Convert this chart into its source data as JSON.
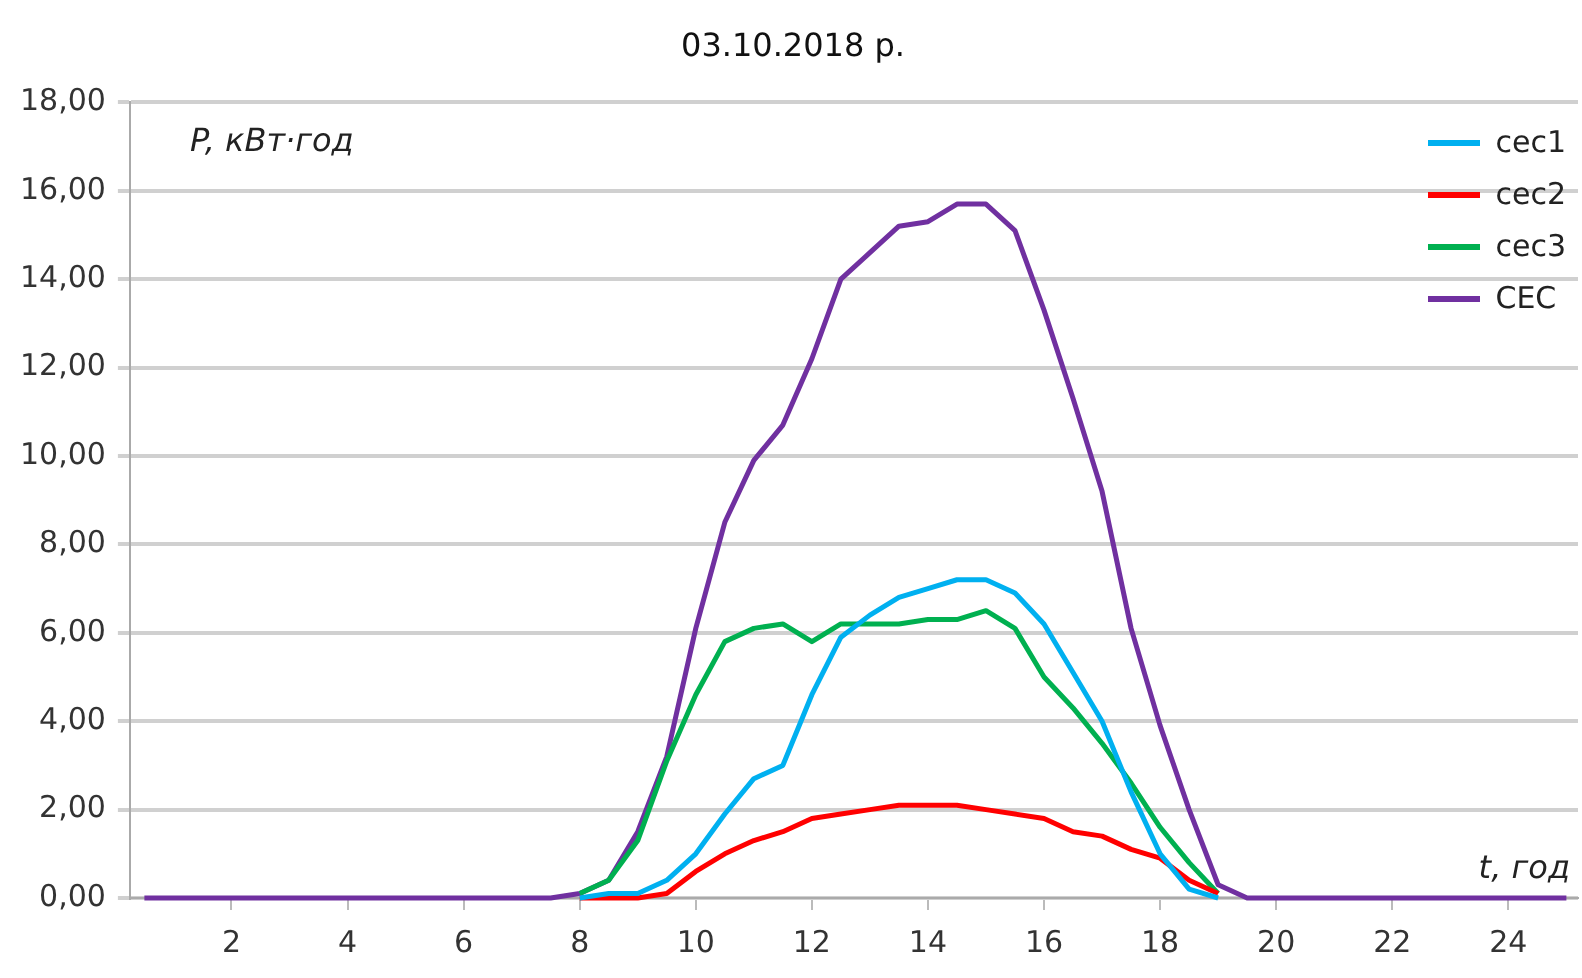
{
  "chart_data": {
    "type": "line",
    "title": "03.10.2018 р.",
    "ylabel": "P, кВт·год",
    "xlabel": "t, год",
    "x": [
      0.5,
      1,
      1.5,
      2,
      2.5,
      3,
      3.5,
      4,
      4.5,
      5,
      5.5,
      6,
      6.5,
      7,
      7.5,
      8,
      8.5,
      9,
      9.5,
      10,
      10.5,
      11,
      11.5,
      12,
      12.5,
      13,
      13.5,
      14,
      14.5,
      15,
      15.5,
      16,
      16.5,
      17,
      17.5,
      18,
      18.5,
      19,
      19.5,
      20,
      20.5,
      21,
      21.5,
      22,
      22.5,
      23,
      23.5,
      24,
      24.5,
      25
    ],
    "xlim": [
      0.25,
      25.2
    ],
    "xticks": [
      2,
      4,
      6,
      8,
      10,
      12,
      14,
      16,
      18,
      20,
      22,
      24
    ],
    "ylim": [
      0,
      18
    ],
    "yticks": [
      {
        "value": 0,
        "label": "0,00"
      },
      {
        "value": 2,
        "label": "2,00"
      },
      {
        "value": 4,
        "label": "4,00"
      },
      {
        "value": 6,
        "label": "6,00"
      },
      {
        "value": 8,
        "label": "8,00"
      },
      {
        "value": 10,
        "label": "10,00"
      },
      {
        "value": 12,
        "label": "12,00"
      },
      {
        "value": 14,
        "label": "14,00"
      },
      {
        "value": 16,
        "label": "16,00"
      },
      {
        "value": 18,
        "label": "18,00"
      }
    ],
    "grid": "y",
    "legend": "top right",
    "marker": "none",
    "line_style": "solid",
    "series": [
      {
        "name": "сес1",
        "color": "#00b0f0",
        "values": [
          null,
          null,
          null,
          null,
          null,
          null,
          null,
          null,
          null,
          null,
          null,
          null,
          null,
          null,
          null,
          0,
          0.1,
          0.1,
          0.4,
          1.0,
          1.9,
          2.7,
          3.0,
          4.6,
          5.9,
          6.4,
          6.8,
          7.0,
          7.2,
          7.2,
          6.9,
          6.2,
          5.1,
          4.0,
          2.4,
          1.0,
          0.2,
          0,
          null,
          null,
          null,
          null,
          null,
          null,
          null,
          null,
          null,
          null,
          null,
          null
        ]
      },
      {
        "name": "сес2",
        "color": "#ff0000",
        "values": [
          null,
          null,
          null,
          null,
          null,
          null,
          null,
          null,
          null,
          null,
          null,
          null,
          null,
          null,
          null,
          0,
          0,
          0,
          0.1,
          0.6,
          1.0,
          1.3,
          1.5,
          1.8,
          1.9,
          2.0,
          2.1,
          2.1,
          2.1,
          2.0,
          1.9,
          1.8,
          1.5,
          1.4,
          1.1,
          0.9,
          0.4,
          0.1,
          null,
          null,
          null,
          null,
          null,
          null,
          null,
          null,
          null,
          null,
          null,
          null
        ]
      },
      {
        "name": "сес3",
        "color": "#00b050",
        "values": [
          null,
          null,
          null,
          null,
          null,
          null,
          null,
          null,
          null,
          null,
          null,
          null,
          null,
          null,
          null,
          0.1,
          0.4,
          1.3,
          3.1,
          4.6,
          5.8,
          6.1,
          6.2,
          5.8,
          6.2,
          6.2,
          6.2,
          6.3,
          6.3,
          6.5,
          6.1,
          5.0,
          4.3,
          3.5,
          2.6,
          1.6,
          0.8,
          0.1,
          null,
          null,
          null,
          null,
          null,
          null,
          null,
          null,
          null,
          null,
          null,
          null
        ]
      },
      {
        "name": "СЕС",
        "color": "#7030a0",
        "values": [
          0,
          0,
          0,
          0,
          0,
          0,
          0,
          0,
          0,
          0,
          0,
          0,
          0,
          0,
          0,
          0.1,
          0.4,
          1.5,
          3.2,
          6.1,
          8.5,
          9.9,
          10.7,
          12.2,
          14.0,
          14.6,
          15.2,
          15.3,
          15.7,
          15.7,
          15.1,
          13.3,
          11.3,
          9.2,
          6.1,
          3.9,
          2.0,
          0.3,
          0,
          0,
          0,
          0,
          0,
          0,
          0,
          0,
          0,
          0,
          0,
          0
        ]
      }
    ]
  }
}
